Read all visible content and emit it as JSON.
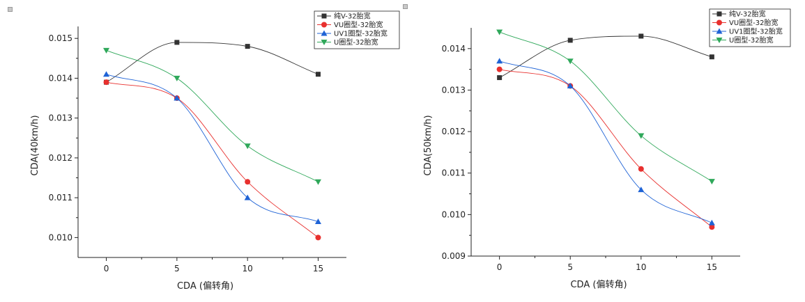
{
  "chart_data": [
    {
      "type": "line",
      "xlabel": "CDA (偏转角)",
      "ylabel": "CDA(40km/h)",
      "x": [
        0,
        5,
        10,
        15
      ],
      "xticks": [
        "0",
        "5",
        "10",
        "15"
      ],
      "xlim": [
        -2,
        17
      ],
      "ylim": [
        0.0095,
        0.0153
      ],
      "yticks": [
        "0.010",
        "0.011",
        "0.012",
        "0.013",
        "0.014",
        "0.015"
      ],
      "grid": false,
      "legend_position": "top-right",
      "series": [
        {
          "name": "纯V-32胎宽",
          "marker": "square",
          "color": "#333333",
          "values": [
            0.0139,
            0.0149,
            0.0148,
            0.0141
          ]
        },
        {
          "name": "VU圈型-32胎宽",
          "marker": "circle",
          "color": "#e8302e",
          "values": [
            0.0139,
            0.0135,
            0.0114,
            0.01
          ]
        },
        {
          "name": "UV1圈型-32胎宽",
          "marker": "triangle-up",
          "color": "#1f63d6",
          "values": [
            0.0141,
            0.0135,
            0.011,
            0.0104
          ]
        },
        {
          "name": "U圈型-32胎宽",
          "marker": "triangle-down",
          "color": "#2fa85a",
          "values": [
            0.0147,
            0.014,
            0.0123,
            0.0114
          ]
        }
      ]
    },
    {
      "type": "line",
      "xlabel": "CDA (偏转角)",
      "ylabel": "CDA(50km/h)",
      "x": [
        0,
        5,
        10,
        15
      ],
      "xticks": [
        "0",
        "5",
        "10",
        "15"
      ],
      "xlim": [
        -2,
        17
      ],
      "ylim": [
        0.009,
        0.0145
      ],
      "yticks": [
        "0.009",
        "0.010",
        "0.011",
        "0.012",
        "0.013",
        "0.014"
      ],
      "grid": false,
      "legend_position": "top-right",
      "series": [
        {
          "name": "纯V-32胎宽",
          "marker": "square",
          "color": "#333333",
          "values": [
            0.0133,
            0.0142,
            0.0143,
            0.0138
          ]
        },
        {
          "name": "VU圈型-32胎宽",
          "marker": "circle",
          "color": "#e8302e",
          "values": [
            0.0135,
            0.0131,
            0.0111,
            0.0097
          ]
        },
        {
          "name": "UV1圈型-32胎宽",
          "marker": "triangle-up",
          "color": "#1f63d6",
          "values": [
            0.0137,
            0.0131,
            0.0106,
            0.0098
          ]
        },
        {
          "name": "U圈型-32胎宽",
          "marker": "triangle-down",
          "color": "#2fa85a",
          "values": [
            0.0144,
            0.0137,
            0.0119,
            0.0108
          ]
        }
      ]
    }
  ]
}
